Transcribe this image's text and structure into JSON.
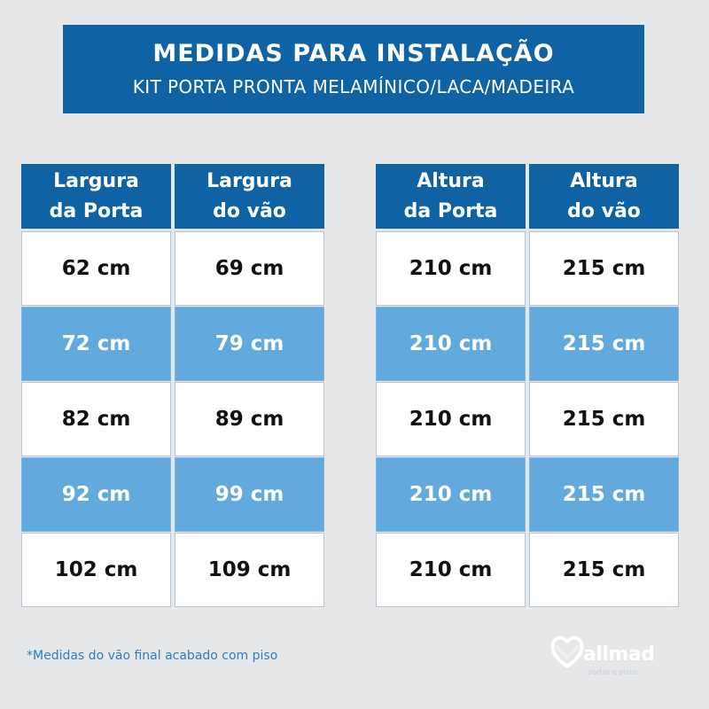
{
  "header": {
    "title": "MEDIDAS PARA INSTALAÇÃO",
    "subtitle": "KIT PORTA PRONTA MELAMÍNICO/LACA/MADEIRA"
  },
  "left_table": {
    "headers": [
      [
        "Largura",
        "da Porta"
      ],
      [
        "Largura",
        "do vão"
      ]
    ],
    "rows": [
      [
        "62 cm",
        "69 cm"
      ],
      [
        "72 cm",
        "79 cm"
      ],
      [
        "82 cm",
        "89 cm"
      ],
      [
        "92 cm",
        "99 cm"
      ],
      [
        "102 cm",
        "109 cm"
      ]
    ]
  },
  "right_table": {
    "headers": [
      [
        "Altura",
        "da Porta"
      ],
      [
        "Altura",
        "do vão"
      ]
    ],
    "rows": [
      [
        "210 cm",
        "215 cm"
      ],
      [
        "210 cm",
        "215 cm"
      ],
      [
        "210 cm",
        "215 cm"
      ],
      [
        "210 cm",
        "215 cm"
      ],
      [
        "210 cm",
        "215 cm"
      ]
    ]
  },
  "footnote": "*Medidas do vão final acabado com piso",
  "logo": {
    "name": "allmad",
    "tagline": "portas e pisos",
    "icon": "heart-logo-icon"
  },
  "colors": {
    "primary_blue": "#0f62a4",
    "row_blue": "#62a9de",
    "background": "#e6e7e9"
  }
}
